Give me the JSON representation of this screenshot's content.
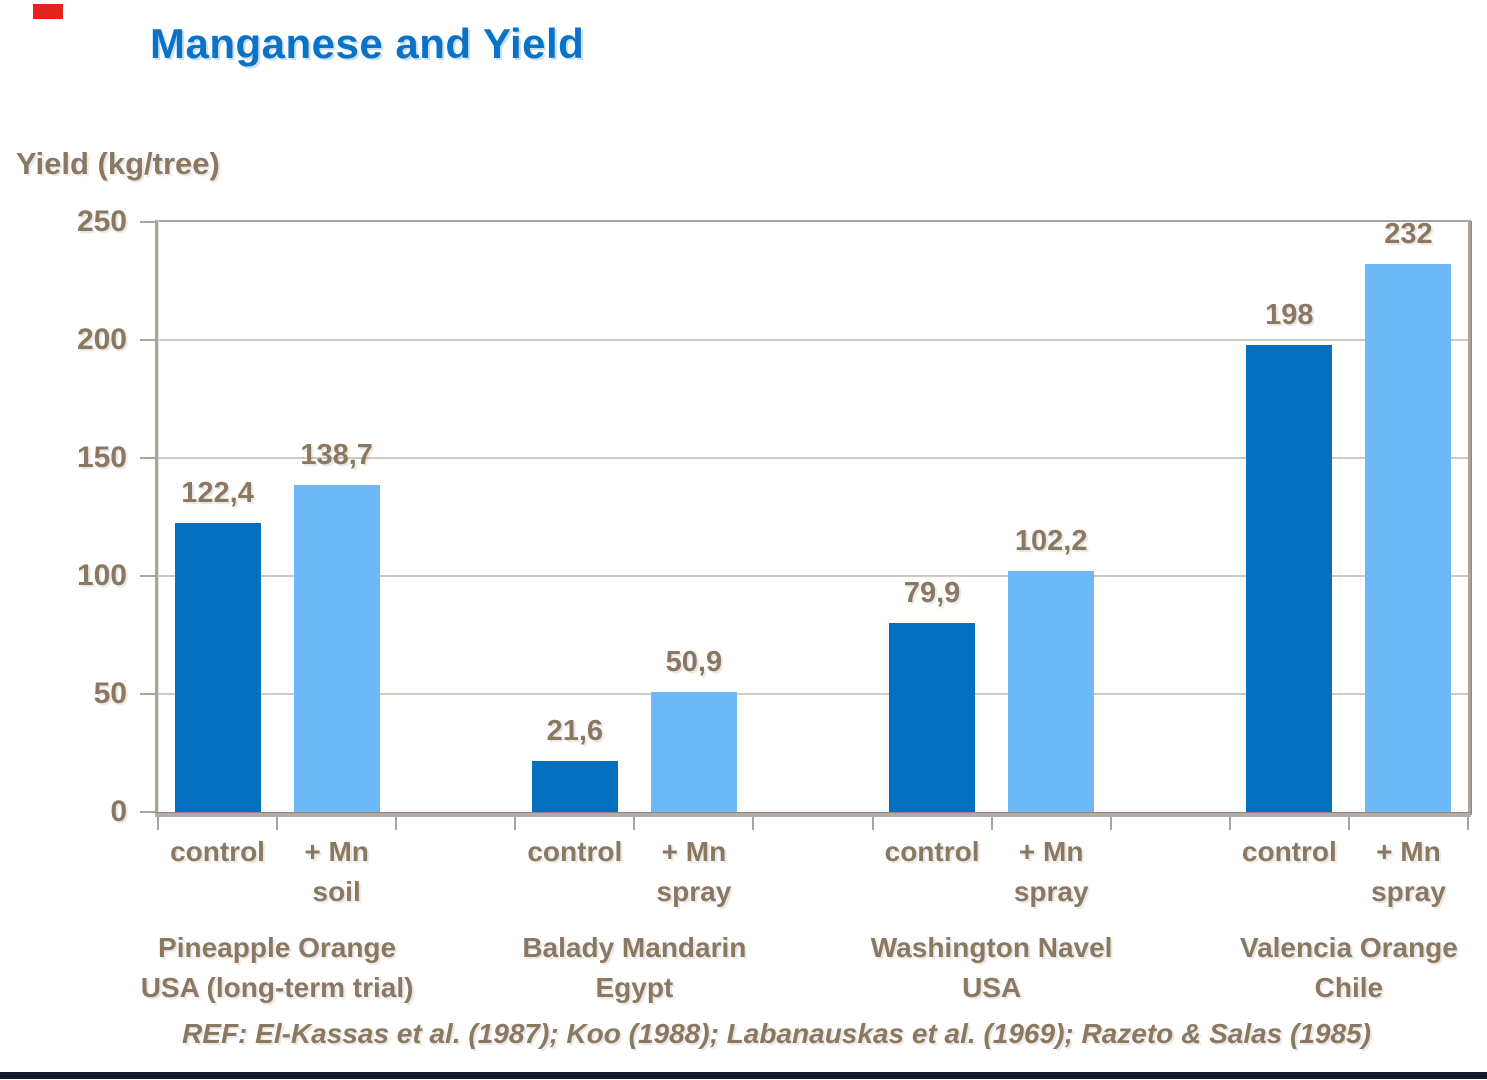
{
  "slide": {
    "title": "Manganese and Yield",
    "title_color": "#0b73c7",
    "text_color": "#8a7863",
    "accent_color": "#e3231e",
    "footer_bar_color": "#141b2d"
  },
  "chart_data": {
    "type": "bar",
    "title": "Manganese and Yield",
    "ylabel": "Yield (kg/tree)",
    "xlabel": "",
    "ylim": [
      0,
      250
    ],
    "yticks": [
      250,
      200,
      150,
      100,
      50,
      0
    ],
    "grid": "horizontal gridlines at every 50",
    "legend": "none",
    "decimal_separator": "comma",
    "series": [
      {
        "name": "control",
        "color": "#0570bf",
        "values": [
          122.4,
          21.6,
          79.9,
          198
        ],
        "labels": [
          "122,4",
          "21,6",
          "79,9",
          "198"
        ]
      },
      {
        "name": "+ Mn",
        "color": "#6db9f7",
        "values": [
          138.7,
          50.9,
          102.2,
          232
        ],
        "labels": [
          "138,7",
          "50,9",
          "102,2",
          "232"
        ]
      }
    ],
    "groups": [
      {
        "treatment1": "control",
        "treatment2": "+ Mn",
        "treatment2_sub": "soil",
        "line1": "Pineapple Orange",
        "line2": "USA (long-term trial)"
      },
      {
        "treatment1": "control",
        "treatment2": "+ Mn",
        "treatment2_sub": "spray",
        "line1": "Balady Mandarin",
        "line2": "Egypt"
      },
      {
        "treatment1": "control",
        "treatment2": "+ Mn",
        "treatment2_sub": "spray",
        "line1": "Washington Navel",
        "line2": "USA"
      },
      {
        "treatment1": "control",
        "treatment2": "+ Mn",
        "treatment2_sub": "spray",
        "line1": "Valencia Orange",
        "line2": "Chile"
      }
    ],
    "footnote": "REF: El-Kassas et al. (1987); Koo (1988); Labanauskas et al. (1969); Razeto & Salas (1985)"
  }
}
